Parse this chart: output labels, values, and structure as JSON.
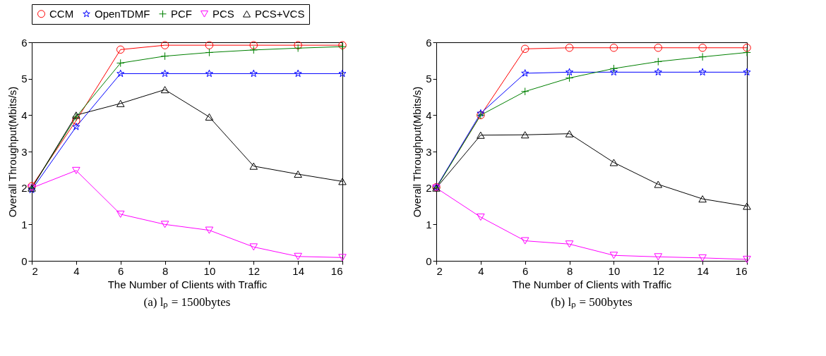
{
  "chart_data": [
    {
      "type": "line",
      "title": "(a) lₚ = 1500bytes",
      "xlabel": "The Number of Clients with Traffic",
      "ylabel": "Overall Throughput(Mbits/s)",
      "x": [
        2,
        4,
        6,
        8,
        10,
        12,
        14,
        16
      ],
      "xlim": [
        2,
        16
      ],
      "xticks": [
        2,
        4,
        6,
        8,
        10,
        12,
        14,
        16
      ],
      "ylim": [
        0,
        6
      ],
      "yticks": [
        0,
        1,
        2,
        3,
        4,
        5,
        6
      ],
      "grid": false,
      "legend": "top",
      "series": [
        {
          "name": "CCM",
          "color": "#ff0000",
          "marker": "circle",
          "values": [
            2.05,
            3.85,
            5.8,
            5.92,
            5.92,
            5.92,
            5.92,
            5.92
          ]
        },
        {
          "name": "OpenTDMF",
          "color": "#0000ff",
          "marker": "star",
          "values": [
            1.95,
            3.68,
            5.14,
            5.14,
            5.14,
            5.14,
            5.14,
            5.14
          ]
        },
        {
          "name": "PCF",
          "color": "#008000",
          "marker": "cross",
          "values": [
            2.0,
            3.95,
            5.43,
            5.62,
            5.72,
            5.79,
            5.84,
            5.88
          ]
        },
        {
          "name": "PCS",
          "color": "#ff00ff",
          "marker": "triangle-down",
          "values": [
            2.0,
            2.48,
            1.28,
            1.0,
            0.84,
            0.38,
            0.12,
            0.09
          ]
        },
        {
          "name": "PCS+VCS",
          "color": "#000000",
          "marker": "triangle",
          "values": [
            2.0,
            4.0,
            4.32,
            4.7,
            3.95,
            2.6,
            2.38,
            2.18
          ]
        }
      ]
    },
    {
      "type": "line",
      "title": "(b) lₚ = 500bytes",
      "xlabel": "The Number of Clients with Traffic",
      "ylabel": "Overall Throughput(Mbits/s)",
      "x": [
        2,
        4,
        6,
        8,
        10,
        12,
        14,
        16
      ],
      "xlim": [
        2,
        16
      ],
      "xticks": [
        2,
        4,
        6,
        8,
        10,
        12,
        14,
        16
      ],
      "ylim": [
        0,
        6
      ],
      "yticks": [
        0,
        1,
        2,
        3,
        4,
        5,
        6
      ],
      "grid": false,
      "legend": "top",
      "series": [
        {
          "name": "CCM",
          "color": "#ff0000",
          "marker": "circle",
          "values": [
            2.02,
            4.0,
            5.82,
            5.85,
            5.85,
            5.85,
            5.85,
            5.85
          ]
        },
        {
          "name": "OpenTDMF",
          "color": "#0000ff",
          "marker": "star",
          "values": [
            2.02,
            4.05,
            5.15,
            5.18,
            5.18,
            5.18,
            5.18,
            5.18
          ]
        },
        {
          "name": "PCF",
          "color": "#008000",
          "marker": "cross",
          "values": [
            2.0,
            4.0,
            4.65,
            5.02,
            5.28,
            5.47,
            5.6,
            5.72
          ]
        },
        {
          "name": "PCS",
          "color": "#ff00ff",
          "marker": "triangle-down",
          "values": [
            2.0,
            1.2,
            0.55,
            0.46,
            0.15,
            0.11,
            0.08,
            0.04
          ]
        },
        {
          "name": "PCS+VCS",
          "color": "#000000",
          "marker": "triangle",
          "values": [
            2.0,
            3.45,
            3.46,
            3.49,
            2.7,
            2.1,
            1.7,
            1.5
          ]
        }
      ]
    }
  ]
}
